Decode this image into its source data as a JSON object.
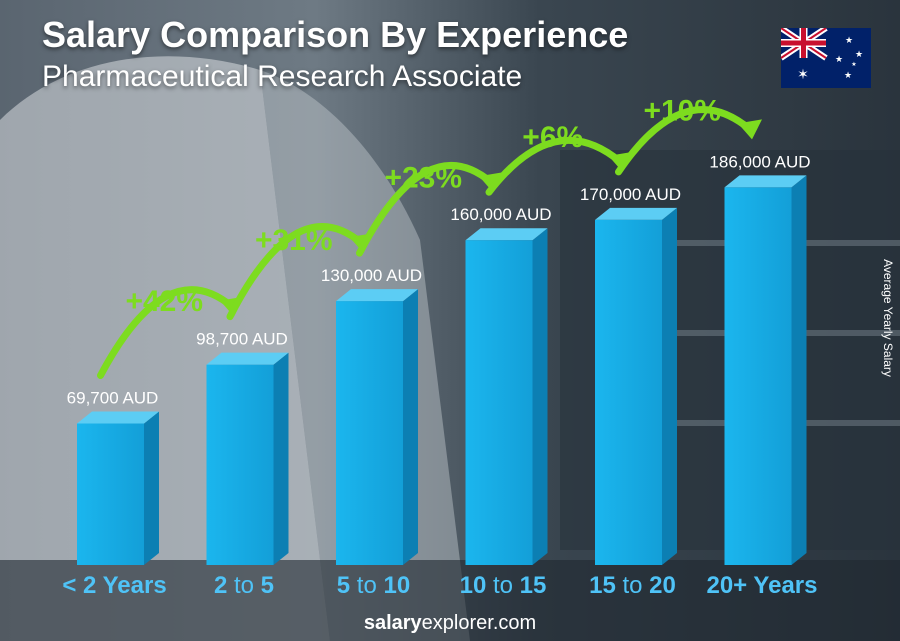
{
  "header": {
    "title": "Salary Comparison By Experience",
    "subtitle": "Pharmaceutical Research Associate"
  },
  "y_axis_label": "Average Yearly Salary",
  "footer": {
    "brand_bold": "salary",
    "brand_rest": "explorer.com"
  },
  "colors": {
    "bar_front": "#19aee6",
    "bar_side": "#0c7fb3",
    "bar_top": "#5ccdf4",
    "category": "#4fc3f7",
    "increase": "#7ddc1f",
    "flag_blue": "#012169",
    "flag_red": "#C8102E"
  },
  "icons": {
    "flag": "australia-flag-icon",
    "arrow": "curved-arrow-icon"
  },
  "chart_data": {
    "type": "bar",
    "title": "Salary Comparison By Experience",
    "subtitle": "Pharmaceutical Research Associate",
    "ylabel": "Average Yearly Salary",
    "xlabel": "",
    "categories": [
      {
        "pre": "< 2 Years",
        "mid": "",
        "post": ""
      },
      {
        "pre": "2",
        "mid": " to ",
        "post": "5"
      },
      {
        "pre": "5",
        "mid": " to ",
        "post": "10"
      },
      {
        "pre": "10",
        "mid": " to ",
        "post": "15"
      },
      {
        "pre": "15",
        "mid": " to ",
        "post": "20"
      },
      {
        "pre": "20+ Years",
        "mid": "",
        "post": ""
      }
    ],
    "values": [
      69700,
      98700,
      130000,
      160000,
      170000,
      186000
    ],
    "value_labels": [
      "69,700 AUD",
      "98,700 AUD",
      "130,000 AUD",
      "160,000 AUD",
      "170,000 AUD",
      "186,000 AUD"
    ],
    "increases": [
      "+42%",
      "+31%",
      "+23%",
      "+6%",
      "+10%"
    ],
    "ylim": [
      0,
      200000
    ],
    "grid": false,
    "legend": "none"
  }
}
